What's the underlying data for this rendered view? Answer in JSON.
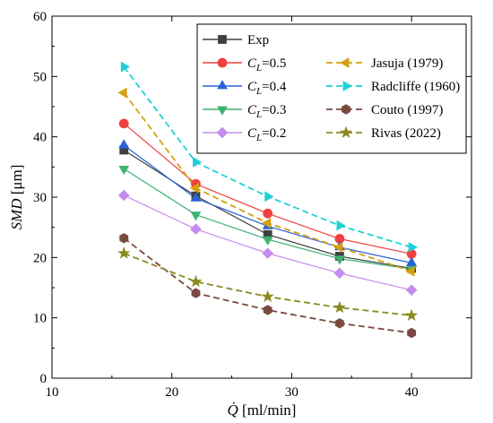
{
  "chart_data": {
    "type": "line",
    "xlabel": "[ml/min]",
    "xlabel_symbol": "Q̇",
    "ylabel": "[μm]",
    "ylabel_symbol": "SMD",
    "xlim": [
      10,
      45
    ],
    "ylim": [
      0,
      60
    ],
    "xticks": [
      10,
      20,
      30,
      40
    ],
    "yticks": [
      0,
      10,
      20,
      30,
      40,
      50,
      60
    ],
    "tick_direction": "in",
    "grid": false,
    "legend_position": "top-right",
    "x": [
      16,
      22,
      28,
      34,
      40
    ],
    "series": [
      {
        "name": "Exp",
        "values": [
          37.8,
          30.2,
          23.8,
          20.2,
          18.2
        ],
        "color": "#404040",
        "marker": "square",
        "line": "solid",
        "legend_col": 0,
        "legend_row": 0
      },
      {
        "name": "=0.5",
        "name_prefix": "C",
        "name_sub": "L",
        "values": [
          42.2,
          32.2,
          27.3,
          23.1,
          20.6
        ],
        "color": "#f04040",
        "marker": "circle",
        "line": "solid",
        "legend_col": 0,
        "legend_row": 1
      },
      {
        "name": "=0.4",
        "name_prefix": "C",
        "name_sub": "L",
        "values": [
          38.6,
          29.8,
          25.2,
          21.7,
          19.1
        ],
        "color": "#2a62d8",
        "marker": "triangle-up",
        "line": "solid",
        "legend_col": 0,
        "legend_row": 2
      },
      {
        "name": "=0.3",
        "name_prefix": "C",
        "name_sub": "L",
        "values": [
          34.7,
          27.1,
          23.0,
          19.8,
          18.1
        ],
        "color": "#3cb371",
        "marker": "triangle-down",
        "line": "solid",
        "legend_col": 0,
        "legend_row": 3
      },
      {
        "name": "=0.2",
        "name_prefix": "C",
        "name_sub": "L",
        "values": [
          30.3,
          24.7,
          20.7,
          17.4,
          14.6
        ],
        "color": "#c58cf0",
        "marker": "diamond",
        "line": "solid",
        "legend_col": 0,
        "legend_row": 4
      },
      {
        "name": "Jasuja (1979)",
        "values": [
          47.3,
          31.5,
          25.7,
          21.7,
          17.7
        ],
        "color": "#d4a010",
        "marker": "triangle-left",
        "line": "dashed",
        "legend_col": 1,
        "legend_row": 1
      },
      {
        "name": "Radcliffe (1960)",
        "values": [
          51.6,
          35.8,
          30.1,
          25.3,
          21.7
        ],
        "color": "#20d0d8",
        "marker": "triangle-right",
        "line": "dashed",
        "legend_col": 1,
        "legend_row": 2
      },
      {
        "name": "Couto (1997)",
        "values": [
          23.2,
          14.1,
          11.3,
          9.1,
          7.5
        ],
        "color": "#7a4a40",
        "marker": "hexagon",
        "line": "dashed",
        "legend_col": 1,
        "legend_row": 3
      },
      {
        "name": "Rivas (2022)",
        "values": [
          20.7,
          16.0,
          13.5,
          11.7,
          10.4
        ],
        "color": "#8a8a20",
        "marker": "star",
        "line": "dashed",
        "legend_col": 1,
        "legend_row": 4
      }
    ]
  }
}
